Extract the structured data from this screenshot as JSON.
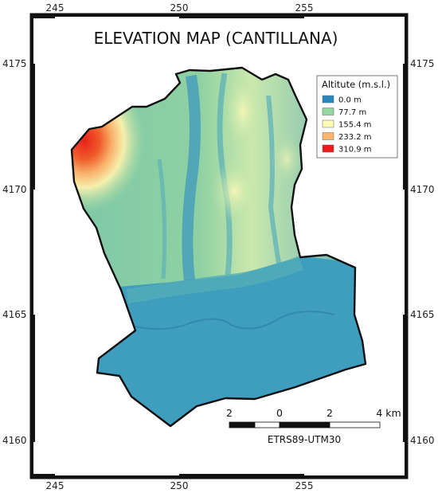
{
  "map": {
    "title": "ELEVATION MAP (CANTILLANA)",
    "crs_label": "EТRS89-UTM30",
    "x_ticks": [
      "245",
      "250",
      "255"
    ],
    "y_ticks": [
      "4175",
      "4170",
      "4165",
      "4160"
    ],
    "colors": {
      "boundary": "#111111",
      "low": "#3c95bf",
      "mid_low": "#8fcfa2",
      "mid": "#fbf8b8",
      "mid_high": "#f8b06a",
      "high": "#e8231c"
    }
  },
  "legend": {
    "title": "Altitute (m.s.l.)",
    "items": [
      {
        "label": "0.0 m",
        "color": "#2c86c0"
      },
      {
        "label": "77.7 m",
        "color": "#93d8a2"
      },
      {
        "label": "155.4 m",
        "color": "#fdfbb6"
      },
      {
        "label": "233.2 m",
        "color": "#fbb66c"
      },
      {
        "label": "310.9 m",
        "color": "#ec1c1c"
      }
    ]
  },
  "scale_bar": {
    "labels": [
      "2",
      "0",
      "2",
      "4 km"
    ]
  }
}
